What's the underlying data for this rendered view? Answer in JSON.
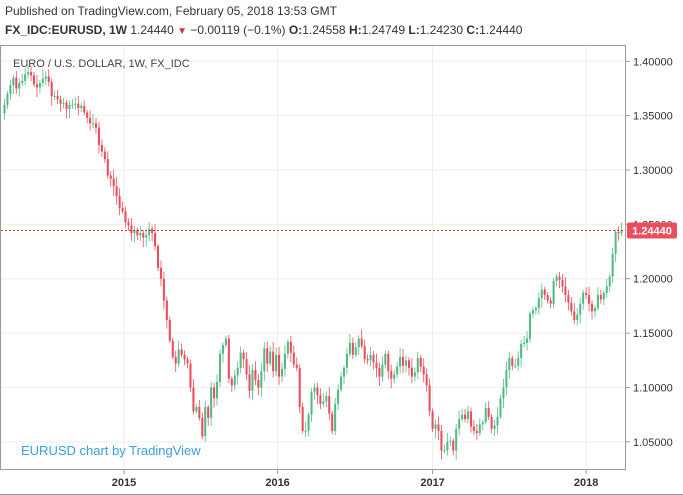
{
  "header": {
    "published": "Published on TradingView.com, February 05, 2018 13:53 GMT",
    "symbol": "FX_IDC:EURUSD, 1W",
    "last": "1.24440",
    "change": "−0.00119 (−0.1%)",
    "open_label": "O:",
    "open": "1.24558",
    "high_label": "H:",
    "high": "1.24749",
    "low_label": "L:",
    "low": "1.24230",
    "close_label": "C:",
    "close": "1.24440"
  },
  "colors": {
    "up": "#53b987",
    "down": "#eb4d5c",
    "price_line": "#c43b3b",
    "watermark": "#3aa0d8"
  },
  "chart_data": {
    "type": "candlestick",
    "title": "EURO / U.S. DOLLAR, 1W, FX_IDC",
    "watermark": "EURUSD chart by TradingView",
    "ylim": [
      1.025,
      1.415
    ],
    "y_ticks": [
      "1.40000",
      "1.35000",
      "1.30000",
      "1.25000",
      "1.20000",
      "1.15000",
      "1.10000",
      "1.05000"
    ],
    "x_ticks": [
      {
        "label": "2015",
        "t": 40.5
      },
      {
        "label": "2016",
        "t": 92.5
      },
      {
        "label": "2017",
        "t": 145
      },
      {
        "label": "2018",
        "t": 197
      }
    ],
    "last_price": 1.2444,
    "last_price_label": "1.24440",
    "grid": true,
    "closes": [
      1.36,
      1.37,
      1.378,
      1.385,
      1.375,
      1.38,
      1.382,
      1.388,
      1.39,
      1.387,
      1.379,
      1.376,
      1.38,
      1.384,
      1.386,
      1.381,
      1.368,
      1.368,
      1.365,
      1.361,
      1.362,
      1.356,
      1.36,
      1.36,
      1.361,
      1.357,
      1.359,
      1.353,
      1.348,
      1.343,
      1.343,
      1.339,
      1.323,
      1.317,
      1.31,
      1.295,
      1.292,
      1.285,
      1.276,
      1.265,
      1.262,
      1.252,
      1.249,
      1.242,
      1.245,
      1.24,
      1.242,
      1.238,
      1.24,
      1.246,
      1.242,
      1.23,
      1.21,
      1.2,
      1.18,
      1.162,
      1.143,
      1.128,
      1.122,
      1.135,
      1.13,
      1.126,
      1.122,
      1.1,
      1.078,
      1.082,
      1.072,
      1.055,
      1.082,
      1.072,
      1.1,
      1.09,
      1.105,
      1.131,
      1.139,
      1.145,
      1.108,
      1.102,
      1.111,
      1.118,
      1.132,
      1.126,
      1.112,
      1.097,
      1.116,
      1.107,
      1.1,
      1.115,
      1.136,
      1.122,
      1.133,
      1.115,
      1.13,
      1.11,
      1.117,
      1.131,
      1.142,
      1.132,
      1.121,
      1.118,
      1.082,
      1.06,
      1.06,
      1.075,
      1.096,
      1.1,
      1.093,
      1.085,
      1.087,
      1.092,
      1.076,
      1.06,
      1.085,
      1.098,
      1.11,
      1.118,
      1.131,
      1.141,
      1.13,
      1.137,
      1.145,
      1.138,
      1.126,
      1.125,
      1.13,
      1.123,
      1.118,
      1.11,
      1.121,
      1.131,
      1.115,
      1.108,
      1.112,
      1.119,
      1.128,
      1.12,
      1.125,
      1.118,
      1.11,
      1.114,
      1.127,
      1.119,
      1.112,
      1.102,
      1.078,
      1.062,
      1.066,
      1.06,
      1.042,
      1.042,
      1.05,
      1.051,
      1.042,
      1.062,
      1.071,
      1.075,
      1.071,
      1.078,
      1.064,
      1.06,
      1.058,
      1.066,
      1.068,
      1.081,
      1.073,
      1.062,
      1.065,
      1.073,
      1.09,
      1.1,
      1.116,
      1.127,
      1.12,
      1.12,
      1.127,
      1.14,
      1.141,
      1.145,
      1.168,
      1.171,
      1.173,
      1.182,
      1.19,
      1.185,
      1.18,
      1.177,
      1.198,
      1.202,
      1.199,
      1.193,
      1.185,
      1.178,
      1.17,
      1.162,
      1.167,
      1.177,
      1.187,
      1.185,
      1.177,
      1.17,
      1.173,
      1.185,
      1.181,
      1.187,
      1.193,
      1.202,
      1.223,
      1.243,
      1.242,
      1.2444
    ]
  }
}
